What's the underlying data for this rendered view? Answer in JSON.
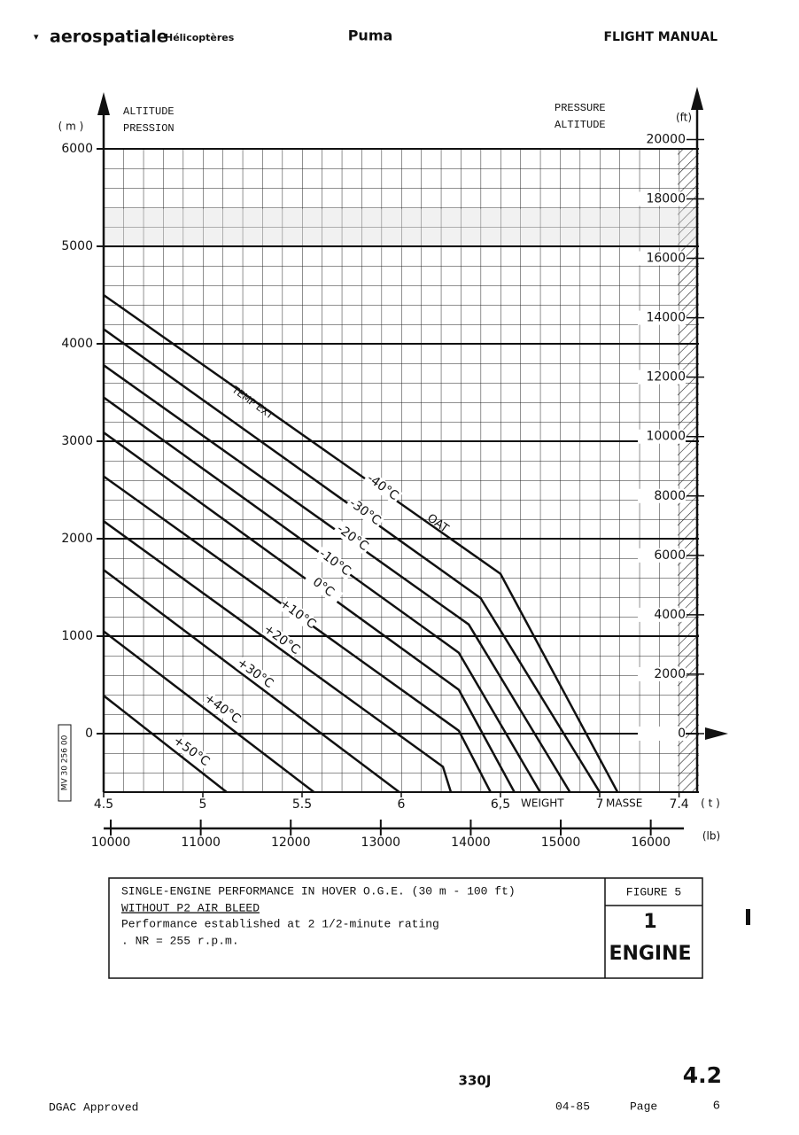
{
  "header": {
    "brand": "aerospatiale",
    "division": "Hélicoptères",
    "model": "Puma",
    "manual": "FLIGHT MANUAL"
  },
  "chart_data": {
    "type": "line",
    "y_unit": "( m )",
    "y_label": [
      "ALTITUDE",
      "PRESSION"
    ],
    "y2_unit": "(ft)",
    "y2_label": [
      "PRESSURE",
      "ALTITUDE"
    ],
    "x_label": "WEIGHT",
    "x_label_alt": "MASSE",
    "x_unit": "( t )",
    "x2_unit": "(lb)",
    "xlim": [
      4.5,
      7.5
    ],
    "xticks": [
      4.5,
      5,
      5.5,
      6,
      {
        "value": 6.5,
        "label": "6,5"
      },
      7,
      7.4
    ],
    "x2lim": [
      9921,
      16535
    ],
    "x2ticks": [
      10000,
      11000,
      12000,
      13000,
      14000,
      15000,
      16000
    ],
    "ylim": [
      -600,
      6000
    ],
    "yticks": [
      0,
      1000,
      2000,
      3000,
      4000,
      5000,
      6000
    ],
    "y2lim": [
      -1969,
      19685
    ],
    "y2ticks": [
      0,
      2000,
      4000,
      6000,
      8000,
      10000,
      12000,
      14000,
      16000,
      18000,
      20000
    ],
    "grid": true,
    "color": "#111111",
    "annotations": [
      "TEMP EXT",
      "OAT"
    ],
    "stamp": "MV 30 256 00",
    "series": [
      {
        "name": "-40°C",
        "x": [
          4.5,
          6.5,
          7.09
        ],
        "values": [
          4500,
          1640,
          -600
        ]
      },
      {
        "name": "-30°C",
        "x": [
          4.5,
          6.4,
          7.0
        ],
        "values": [
          4150,
          1390,
          -600
        ]
      },
      {
        "name": "-20°C",
        "x": [
          4.5,
          6.34,
          6.85
        ],
        "values": [
          3780,
          1120,
          -600
        ]
      },
      {
        "name": "-10°C",
        "x": [
          4.5,
          6.29,
          6.7
        ],
        "values": [
          3450,
          830,
          -600
        ]
      },
      {
        "name": "0°C",
        "x": [
          4.5,
          6.29,
          6.57
        ],
        "values": [
          3090,
          450,
          -600
        ]
      },
      {
        "name": "+10°C",
        "x": [
          4.5,
          6.29,
          6.45
        ],
        "values": [
          2640,
          30,
          -600
        ]
      },
      {
        "name": "+20°C",
        "x": [
          4.5,
          6.21,
          6.25
        ],
        "values": [
          2180,
          -340,
          -600
        ]
      },
      {
        "name": "+30°C",
        "x": [
          4.5,
          5.99
        ],
        "values": [
          1680,
          -600
        ]
      },
      {
        "name": "+40°C",
        "x": [
          4.5,
          5.56
        ],
        "values": [
          1050,
          -600
        ]
      },
      {
        "name": "+50°C",
        "x": [
          4.5,
          5.12
        ],
        "values": [
          390,
          -600
        ]
      }
    ]
  },
  "caption": {
    "title": "SINGLE-ENGINE PERFORMANCE IN HOVER O.G.E. (30 m - 100 ft)",
    "subtitle": "WITHOUT P2 AIR BLEED",
    "lines": [
      "Performance established at 2 1/2-minute rating",
      ". NR = 255 r.p.m."
    ],
    "figure": "FIGURE 5",
    "engine_count": "1",
    "engine": "ENGINE"
  },
  "footer": {
    "model_code": "330J",
    "section": "4.2",
    "approval": "DGAC Approved",
    "date": "04-85",
    "page_label": "Page",
    "page": "6"
  }
}
